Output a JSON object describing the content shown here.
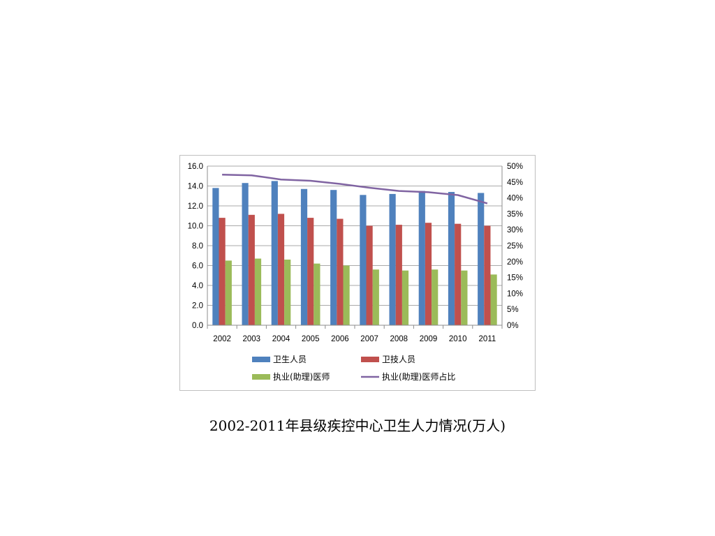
{
  "caption": "2002-2011年县级疾控中心卫生人力情况(万人)",
  "chart_data": {
    "type": "bar",
    "categories": [
      "2002",
      "2003",
      "2004",
      "2005",
      "2006",
      "2007",
      "2008",
      "2009",
      "2010",
      "2011"
    ],
    "series": [
      {
        "name": "卫生人员",
        "type": "bar",
        "axis": "left",
        "color": "#4f81bd",
        "values": [
          13.8,
          14.3,
          14.5,
          13.7,
          13.6,
          13.1,
          13.2,
          13.5,
          13.4,
          13.3
        ]
      },
      {
        "name": "卫技人员",
        "type": "bar",
        "axis": "left",
        "color": "#c0504d",
        "values": [
          10.8,
          11.1,
          11.2,
          10.8,
          10.7,
          10.0,
          10.1,
          10.3,
          10.2,
          10.0
        ]
      },
      {
        "name": "执业(助理)医师",
        "type": "bar",
        "axis": "left",
        "color": "#9bbb59",
        "values": [
          6.5,
          6.7,
          6.6,
          6.2,
          6.0,
          5.6,
          5.5,
          5.6,
          5.5,
          5.1
        ]
      },
      {
        "name": "执业(助理)医师占比",
        "type": "line",
        "axis": "right",
        "color": "#8064a2",
        "values": [
          47.3,
          47.1,
          45.8,
          45.4,
          44.4,
          43.2,
          42.2,
          41.8,
          40.9,
          38.3
        ]
      }
    ],
    "left_axis": {
      "min": 0,
      "max": 16,
      "step": 2,
      "tick_labels": [
        "0.0",
        "2.0",
        "4.0",
        "6.0",
        "8.0",
        "10.0",
        "12.0",
        "14.0",
        "16.0"
      ]
    },
    "right_axis": {
      "min": 0,
      "max": 50,
      "step": 5,
      "tick_labels": [
        "0%",
        "5%",
        "10%",
        "15%",
        "20%",
        "25%",
        "30%",
        "35%",
        "40%",
        "45%",
        "50%"
      ]
    },
    "grid": true,
    "legend_position": "bottom"
  }
}
